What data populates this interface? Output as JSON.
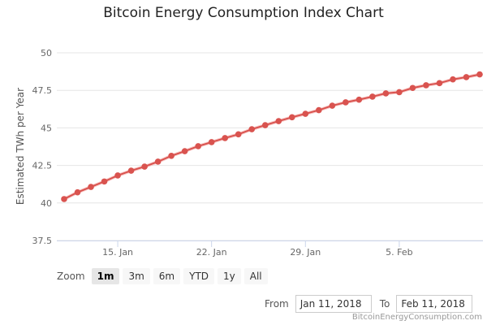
{
  "chart_data": {
    "type": "line",
    "title": "Bitcoin Energy Consumption Index Chart",
    "ylabel": "Estimated TWh per Year",
    "xlabel": "",
    "ylim": [
      37.5,
      50
    ],
    "yticks": [
      "37.5",
      "40",
      "42.5",
      "45",
      "47.5",
      "50"
    ],
    "xticks": [
      {
        "label": "15. Jan",
        "date": "2018-01-15"
      },
      {
        "label": "22. Jan",
        "date": "2018-01-22"
      },
      {
        "label": "29. Jan",
        "date": "2018-01-29"
      },
      {
        "label": "5. Feb",
        "date": "2018-02-05"
      }
    ],
    "x_start": "2018-01-11",
    "x_end": "2018-02-11",
    "grid": true,
    "color": "#d9534f",
    "series": [
      {
        "values": [
          40.26,
          40.71,
          41.07,
          41.43,
          41.83,
          42.15,
          42.42,
          42.75,
          43.14,
          43.45,
          43.78,
          44.05,
          44.32,
          44.57,
          44.91,
          45.18,
          45.45,
          45.71,
          45.94,
          46.18,
          46.48,
          46.7,
          46.88,
          47.08,
          47.3,
          47.38,
          47.66,
          47.84,
          47.98,
          48.23,
          48.38,
          48.56
        ]
      }
    ]
  },
  "zoom": {
    "label": "Zoom",
    "buttons": [
      "1m",
      "3m",
      "6m",
      "YTD",
      "1y",
      "All"
    ],
    "active": "1m"
  },
  "range": {
    "from_label": "From",
    "from": "Jan 11, 2018",
    "to_label": "To",
    "to": "Feb 11, 2018"
  },
  "credit": "BitcoinEnergyConsumption.com"
}
